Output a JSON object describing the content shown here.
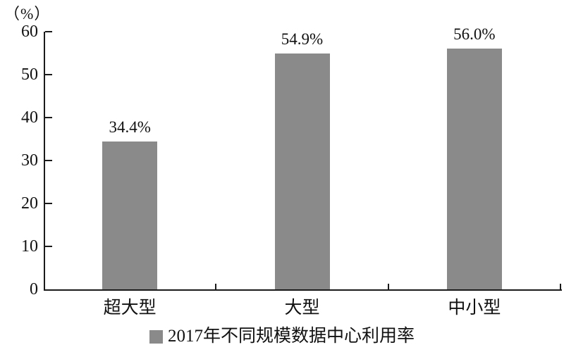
{
  "chart_data": {
    "type": "bar",
    "categories": [
      "超大型",
      "大型",
      "中小型"
    ],
    "values": [
      34.4,
      54.9,
      56.0
    ],
    "value_labels": [
      "34.4%",
      "54.9%",
      "56.0%"
    ],
    "unit_label": "（%）",
    "y_ticks": [
      0,
      10,
      20,
      30,
      40,
      50,
      60
    ],
    "ylim": [
      0,
      60
    ],
    "legend": "2017年不同规模数据中心利用率",
    "legend_position": "bottom-center",
    "grid": "off",
    "bar_color": "#8a8a8a",
    "axis_color": "#1a1a1a",
    "text_color": "#111111"
  }
}
